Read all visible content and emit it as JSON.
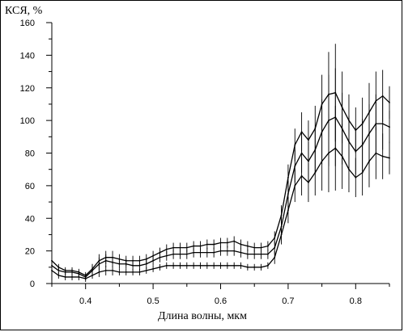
{
  "chart_data": {
    "type": "line",
    "ylabel": "КСЯ, %",
    "xlabel": "Длина волны, мкм",
    "xlim": [
      0.35,
      0.85
    ],
    "ylim": [
      0,
      160
    ],
    "x_ticks": [
      0.4,
      0.5,
      0.6,
      0.7,
      0.8
    ],
    "x_tick_labels": [
      "0.4",
      "0.5",
      "0.6",
      "0.7",
      "0.8"
    ],
    "y_ticks": [
      0,
      20,
      40,
      60,
      80,
      100,
      120,
      140,
      160
    ],
    "y_tick_labels": [
      "0",
      "20",
      "40",
      "60",
      "80",
      "100",
      "120",
      "140",
      "160"
    ],
    "grid": false,
    "x": [
      0.35,
      0.36,
      0.37,
      0.38,
      0.39,
      0.4,
      0.41,
      0.42,
      0.43,
      0.44,
      0.45,
      0.46,
      0.47,
      0.48,
      0.49,
      0.5,
      0.51,
      0.52,
      0.53,
      0.54,
      0.55,
      0.56,
      0.57,
      0.58,
      0.59,
      0.6,
      0.61,
      0.62,
      0.63,
      0.64,
      0.65,
      0.66,
      0.67,
      0.68,
      0.69,
      0.7,
      0.71,
      0.72,
      0.73,
      0.74,
      0.75,
      0.76,
      0.77,
      0.78,
      0.79,
      0.8,
      0.81,
      0.82,
      0.83,
      0.84,
      0.85
    ],
    "series": [
      {
        "values": [
          14,
          10,
          8,
          8,
          7,
          5,
          9,
          14,
          16,
          16,
          15,
          14,
          14,
          14,
          15,
          17,
          19,
          21,
          22,
          22,
          22,
          23,
          23,
          24,
          24,
          25,
          25,
          26,
          24,
          23,
          22,
          22,
          23,
          28,
          42,
          65,
          85,
          93,
          88,
          95,
          110,
          116,
          117,
          108,
          100,
          94,
          98,
          105,
          112,
          115,
          111
        ],
        "errors": [
          2,
          2,
          2,
          2,
          2,
          2,
          3,
          4,
          4,
          4,
          3,
          3,
          3,
          3,
          3,
          3,
          3,
          3,
          3,
          3,
          3,
          3,
          3,
          3,
          3,
          3,
          3,
          3,
          3,
          3,
          3,
          3,
          3,
          4,
          6,
          8,
          10,
          12,
          12,
          14,
          18,
          26,
          30,
          22,
          16,
          14,
          16,
          18,
          18,
          16,
          10
        ]
      },
      {
        "values": [
          11,
          8,
          7,
          7,
          6,
          4,
          8,
          12,
          14,
          13,
          12,
          12,
          11,
          11,
          12,
          14,
          16,
          17,
          18,
          18,
          18,
          19,
          19,
          19,
          19,
          20,
          20,
          20,
          19,
          18,
          18,
          18,
          18,
          22,
          35,
          55,
          72,
          80,
          75,
          82,
          93,
          100,
          102,
          95,
          87,
          81,
          85,
          92,
          98,
          98,
          96
        ],
        "errors": [
          2,
          2,
          2,
          2,
          2,
          2,
          3,
          4,
          4,
          3,
          3,
          3,
          3,
          3,
          3,
          3,
          3,
          3,
          3,
          3,
          3,
          3,
          3,
          3,
          3,
          3,
          3,
          3,
          3,
          3,
          3,
          3,
          3,
          4,
          6,
          8,
          10,
          12,
          12,
          14,
          20,
          28,
          30,
          22,
          16,
          14,
          16,
          18,
          18,
          16,
          10
        ]
      },
      {
        "values": [
          8,
          5,
          4,
          4,
          4,
          3,
          5,
          7,
          8,
          8,
          7,
          7,
          7,
          7,
          8,
          9,
          10,
          11,
          11,
          11,
          11,
          11,
          11,
          11,
          11,
          11,
          11,
          11,
          11,
          10,
          10,
          10,
          11,
          16,
          30,
          45,
          60,
          66,
          62,
          68,
          75,
          80,
          83,
          78,
          70,
          65,
          68,
          75,
          80,
          78,
          77
        ],
        "errors": [
          2,
          2,
          2,
          2,
          2,
          2,
          2,
          3,
          3,
          3,
          2,
          2,
          2,
          2,
          2,
          2,
          2,
          2,
          2,
          2,
          2,
          2,
          2,
          2,
          2,
          2,
          2,
          2,
          2,
          2,
          2,
          2,
          2,
          4,
          6,
          8,
          10,
          12,
          12,
          14,
          18,
          24,
          26,
          20,
          14,
          12,
          14,
          16,
          16,
          14,
          10
        ]
      }
    ]
  }
}
